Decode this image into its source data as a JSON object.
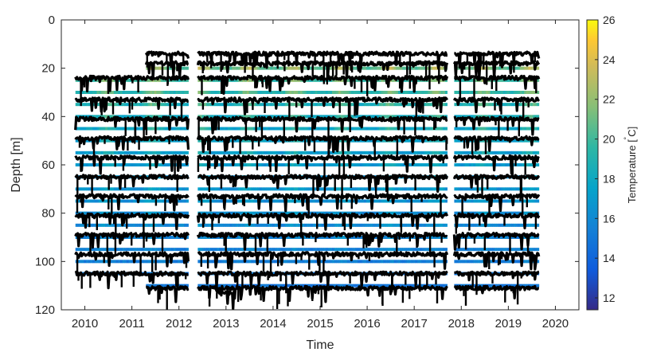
{
  "chart_data": {
    "type": "heatmap",
    "title": "",
    "xlabel": "Time",
    "ylabel": "Depth [m]",
    "colorbar_label": "Temperature [ ̊C]",
    "colorbar_label_parts": {
      "main": "Temperature [",
      "degree": "˚",
      "unit": "C]"
    },
    "xlim": [
      2009.5,
      2020.5
    ],
    "ylim": [
      0,
      120
    ],
    "y_reversed": true,
    "xticks": [
      2010,
      2011,
      2012,
      2013,
      2014,
      2015,
      2016,
      2017,
      2018,
      2019,
      2020
    ],
    "yticks": [
      0,
      20,
      40,
      60,
      80,
      100,
      120
    ],
    "colorbar_range": [
      11.4,
      26
    ],
    "colorbar_ticks": [
      12,
      14,
      16,
      18,
      20,
      22,
      24,
      26
    ],
    "colormap": "parula",
    "colors": {
      "axis": "#262626",
      "marker": "#000000",
      "cool": "#3f73e6",
      "warm": "#f2b636",
      "background": "#ffffff"
    },
    "deployment_periods": [
      {
        "start": 2009.8,
        "end": 2012.2
      },
      {
        "start": 2012.4,
        "end": 2017.7
      },
      {
        "start": 2017.85,
        "end": 2019.65
      }
    ],
    "temperature_series": [
      {
        "depth": 20,
        "start": 2011.3,
        "end": 2019.65,
        "temp": 20.5
      },
      {
        "depth": 25,
        "start": 2009.8,
        "end": 2019.65,
        "temp": 19.5
      },
      {
        "depth": 30,
        "start": 2009.8,
        "end": 2019.65,
        "temp": 19
      },
      {
        "depth": 35,
        "start": 2009.8,
        "end": 2019.65,
        "temp": 18.5
      },
      {
        "depth": 40,
        "start": 2009.8,
        "end": 2019.65,
        "temp": 18
      },
      {
        "depth": 45,
        "start": 2009.8,
        "end": 2019.65,
        "temp": 17.5
      },
      {
        "depth": 50,
        "start": 2009.8,
        "end": 2019.65,
        "temp": 17.3
      },
      {
        "depth": 55,
        "start": 2009.8,
        "end": 2019.65,
        "temp": 17
      },
      {
        "depth": 60,
        "start": 2009.8,
        "end": 2019.65,
        "temp": 16.8
      },
      {
        "depth": 65,
        "start": 2009.8,
        "end": 2019.65,
        "temp": 16.6
      },
      {
        "depth": 70,
        "start": 2009.8,
        "end": 2019.65,
        "temp": 16.4
      },
      {
        "depth": 75,
        "start": 2009.8,
        "end": 2019.65,
        "temp": 16.2
      },
      {
        "depth": 80,
        "start": 2009.8,
        "end": 2019.65,
        "temp": 16
      },
      {
        "depth": 85,
        "start": 2009.8,
        "end": 2019.65,
        "temp": 15.8
      },
      {
        "depth": 90,
        "start": 2009.8,
        "end": 2019.65,
        "temp": 15.6
      },
      {
        "depth": 95,
        "start": 2009.8,
        "end": 2019.65,
        "temp": 15.4
      },
      {
        "depth": 100,
        "start": 2009.8,
        "end": 2019.65,
        "temp": 15.2
      },
      {
        "depth": 105,
        "start": 2009.8,
        "end": 2019.65,
        "temp": 15
      },
      {
        "depth": 110,
        "start": 2011.3,
        "end": 2019.65,
        "temp": 14.8
      }
    ],
    "pressure_depth_traces": [
      {
        "depth": 14,
        "start": 2011.3,
        "end": 2019.65
      },
      {
        "depth": 18,
        "start": 2011.3,
        "end": 2019.65
      },
      {
        "depth": 24,
        "start": 2009.8,
        "end": 2019.65
      },
      {
        "depth": 33,
        "start": 2009.8,
        "end": 2019.65
      },
      {
        "depth": 41,
        "start": 2009.8,
        "end": 2019.65
      },
      {
        "depth": 49,
        "start": 2009.8,
        "end": 2019.65
      },
      {
        "depth": 57,
        "start": 2009.8,
        "end": 2019.65
      },
      {
        "depth": 65,
        "start": 2009.8,
        "end": 2019.65
      },
      {
        "depth": 73,
        "start": 2009.8,
        "end": 2019.65
      },
      {
        "depth": 81,
        "start": 2009.8,
        "end": 2019.65
      },
      {
        "depth": 89,
        "start": 2009.8,
        "end": 2019.65
      },
      {
        "depth": 97,
        "start": 2009.8,
        "end": 2019.65
      },
      {
        "depth": 105,
        "start": 2009.8,
        "end": 2019.65
      },
      {
        "depth": 111,
        "start": 2011.3,
        "end": 2019.65
      },
      {
        "depth": 113,
        "start": 2012.8,
        "end": 2013.2
      }
    ]
  }
}
